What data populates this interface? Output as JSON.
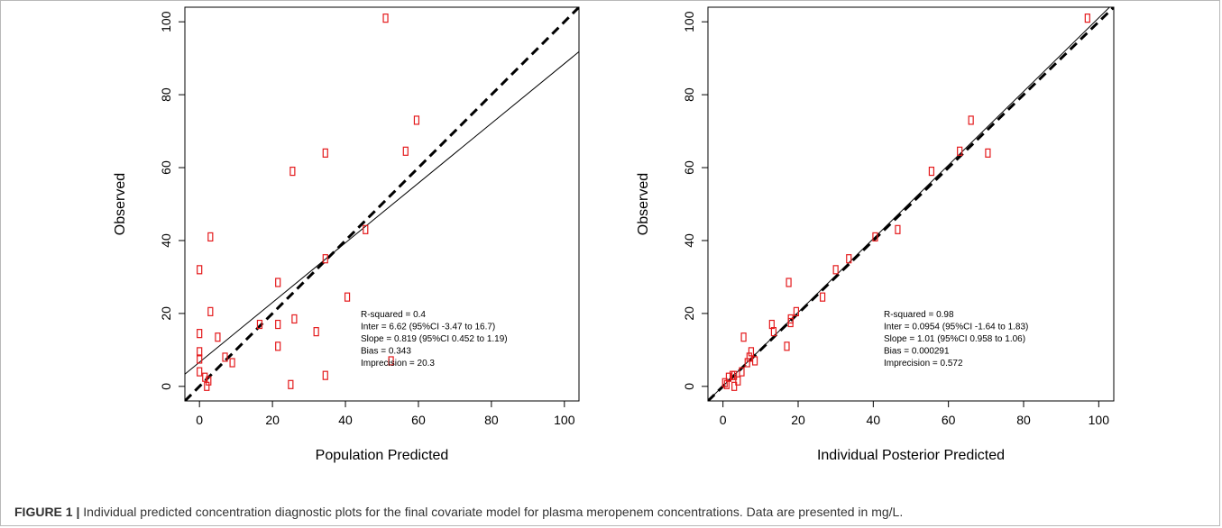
{
  "caption": {
    "label": "FIGURE 1 |",
    "text": " Individual predicted concentration diagnostic plots for the final covariate model for plasma meropenem concentrations. Data are presented in mg/L."
  },
  "colors": {
    "points": "#e41a1c",
    "lines": "#000000",
    "frame": "#b8b8b8"
  },
  "chart_data": [
    {
      "type": "scatter",
      "xlabel": "Population Predicted",
      "ylabel": "Observed",
      "xlim": [
        -4,
        104
      ],
      "ylim": [
        -4,
        104
      ],
      "xticks": [
        0,
        20,
        40,
        60,
        80,
        100
      ],
      "yticks": [
        0,
        20,
        40,
        60,
        80,
        100
      ],
      "reference_line": {
        "style": "dashed",
        "intercept": 0,
        "slope": 1
      },
      "regression_line": {
        "style": "solid",
        "intercept": 6.62,
        "slope": 0.819
      },
      "stats": [
        "R-squared = 0.4",
        "Inter = 6.62 (95%CI -3.47 to 16.7)",
        "Slope = 0.819 (95%CI 0.452 to 1.19)",
        "Bias = 0.343",
        "Imprecision  = 20.3"
      ],
      "points": [
        [
          51,
          101
        ],
        [
          59.5,
          73
        ],
        [
          56.5,
          64.5
        ],
        [
          34.5,
          64
        ],
        [
          25.5,
          59
        ],
        [
          45.5,
          43
        ],
        [
          3,
          41
        ],
        [
          34.5,
          35
        ],
        [
          0,
          32
        ],
        [
          21.5,
          28.5
        ],
        [
          40.5,
          24.5
        ],
        [
          3,
          20.5
        ],
        [
          26,
          18.5
        ],
        [
          16.5,
          17
        ],
        [
          21.5,
          17
        ],
        [
          32,
          15
        ],
        [
          0,
          14.5
        ],
        [
          5,
          13.5
        ],
        [
          21.5,
          11
        ],
        [
          0,
          9.5
        ],
        [
          7,
          8
        ],
        [
          0,
          7.5
        ],
        [
          52.5,
          7
        ],
        [
          9,
          6.5
        ],
        [
          0,
          4
        ],
        [
          34.5,
          3
        ],
        [
          1.5,
          2.5
        ],
        [
          2.5,
          1.5
        ],
        [
          25,
          0.5
        ],
        [
          2,
          0
        ]
      ]
    },
    {
      "type": "scatter",
      "xlabel": "Individual Posterior Predicted",
      "ylabel": "Observed",
      "xlim": [
        -4,
        104
      ],
      "ylim": [
        -4,
        104
      ],
      "xticks": [
        0,
        20,
        40,
        60,
        80,
        100
      ],
      "yticks": [
        0,
        20,
        40,
        60,
        80,
        100
      ],
      "reference_line": {
        "style": "dashed",
        "intercept": 0,
        "slope": 1
      },
      "regression_line": {
        "style": "solid",
        "intercept": 0.0954,
        "slope": 1.01
      },
      "stats": [
        "R-squared = 0.98",
        "Inter = 0.0954 (95%CI -1.64 to 1.83)",
        "Slope = 1.01 (95%CI 0.958 to 1.06)",
        "Bias = 0.000291",
        "Imprecision  = 0.572"
      ],
      "points": [
        [
          97,
          101
        ],
        [
          66,
          73
        ],
        [
          63,
          64.5
        ],
        [
          70.5,
          64
        ],
        [
          55.5,
          59
        ],
        [
          46.5,
          43
        ],
        [
          40.5,
          41
        ],
        [
          33.5,
          35
        ],
        [
          30,
          32
        ],
        [
          17.5,
          28.5
        ],
        [
          26.5,
          24.5
        ],
        [
          19.5,
          20.5
        ],
        [
          18,
          18.5
        ],
        [
          13,
          17
        ],
        [
          18,
          17.5
        ],
        [
          13.5,
          15
        ],
        [
          5.5,
          13.5
        ],
        [
          17,
          11
        ],
        [
          7.5,
          9.5
        ],
        [
          7,
          8
        ],
        [
          8.5,
          7
        ],
        [
          6.5,
          6.5
        ],
        [
          5,
          4
        ],
        [
          3,
          3
        ],
        [
          1.5,
          2.5
        ],
        [
          2.5,
          3
        ],
        [
          1,
          0.5
        ],
        [
          3,
          0
        ],
        [
          4,
          1.5
        ],
        [
          0.5,
          1
        ]
      ]
    }
  ]
}
